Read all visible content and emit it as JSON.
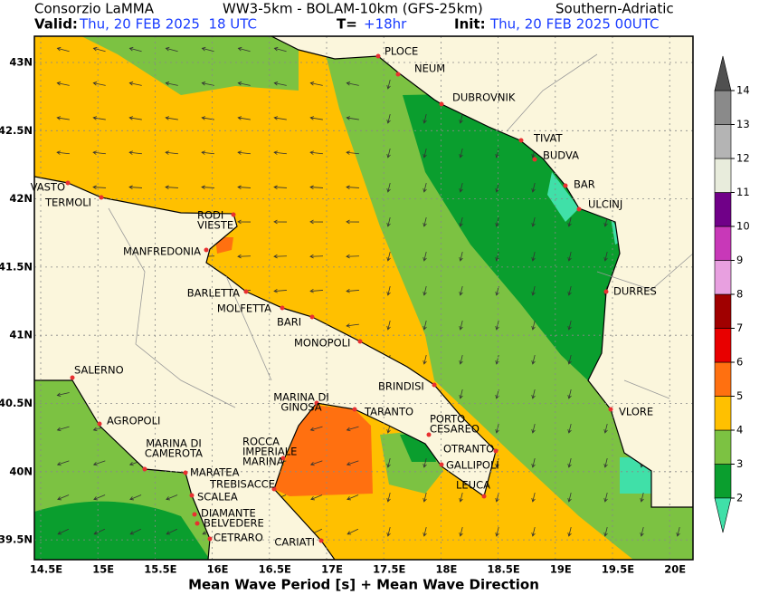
{
  "map": {
    "header": {
      "org": "Consorzio LaMMA",
      "model": "WW3-5km - BOLAM-10km (GFS-25km)",
      "region": "Southern-Adriatic",
      "valid_label": "Valid:",
      "valid": "Thu, 20 FEB 2025  18 UTC",
      "lead_label": "T=",
      "lead": "+18hr",
      "init_label": "Init:",
      "init": "Thu, 20 FEB 2025 00UTC"
    },
    "lon_ticks": [
      "14.5E",
      "15E",
      "15.5E",
      "16E",
      "16.5E",
      "17E",
      "17.5E",
      "18E",
      "18.5E",
      "19E",
      "19.5E",
      "20E"
    ],
    "lat_ticks": [
      "43N",
      "42.5N",
      "42N",
      "41.5N",
      "41N",
      "40.5N",
      "40N",
      "39.5N"
    ],
    "cities": [
      [
        "PLOCE"
      ],
      [
        "NEUM"
      ],
      [
        "DUBROVNIK"
      ],
      [
        "TIVAT"
      ],
      [
        "BUDVA"
      ],
      [
        "BAR"
      ],
      [
        "ULCINJ"
      ],
      [
        "DURRES"
      ],
      [
        "VLORE"
      ],
      [
        "VASTO"
      ],
      [
        "TERMOLI"
      ],
      [
        "RODI",
        "VIESTE"
      ],
      [
        "MANFREDONIA"
      ],
      [
        "BARLETTA"
      ],
      [
        "MOLFETTA"
      ],
      [
        "BARI"
      ],
      [
        "MONOPOLI"
      ],
      [
        "BRINDISI"
      ],
      [
        "SALERNO"
      ],
      [
        "AGROPOLI"
      ],
      [
        "MARINA DI",
        "CAMEROTA"
      ],
      [
        "MARATEA"
      ],
      [
        "ROCCA",
        "IMPERIALE",
        "MARINA"
      ],
      [
        "TREBISACCE"
      ],
      [
        "SCALEA"
      ],
      [
        "DIAMANTE"
      ],
      [
        "BELVEDERE"
      ],
      [
        "CETRARO"
      ],
      [
        "CARIATI"
      ],
      [
        "MARINA DI",
        "GINOSA"
      ],
      [
        "TARANTO"
      ],
      [
        "PORTO",
        "CESAREO"
      ],
      [
        "OTRANTO"
      ],
      [
        "GALLIPOLI"
      ],
      [
        "LEUCA"
      ]
    ],
    "colorbar": {
      "ticks": [
        2,
        3,
        4,
        5,
        6,
        7,
        8,
        9,
        10,
        11,
        12,
        13,
        14
      ],
      "colors": [
        "#0a9e2e",
        "#7cc242",
        "#ffc000",
        "#ff7010",
        "#e80000",
        "#a00000",
        "#e8a0e0",
        "#c838b8",
        "#700088",
        "#e8ecdc",
        "#b4b4b4",
        "#8a8a8a"
      ],
      "under_color": "#40e0a8",
      "over_color": "#505050"
    },
    "caption": "Mean Wave Period [s] + Mean Wave Direction"
  }
}
